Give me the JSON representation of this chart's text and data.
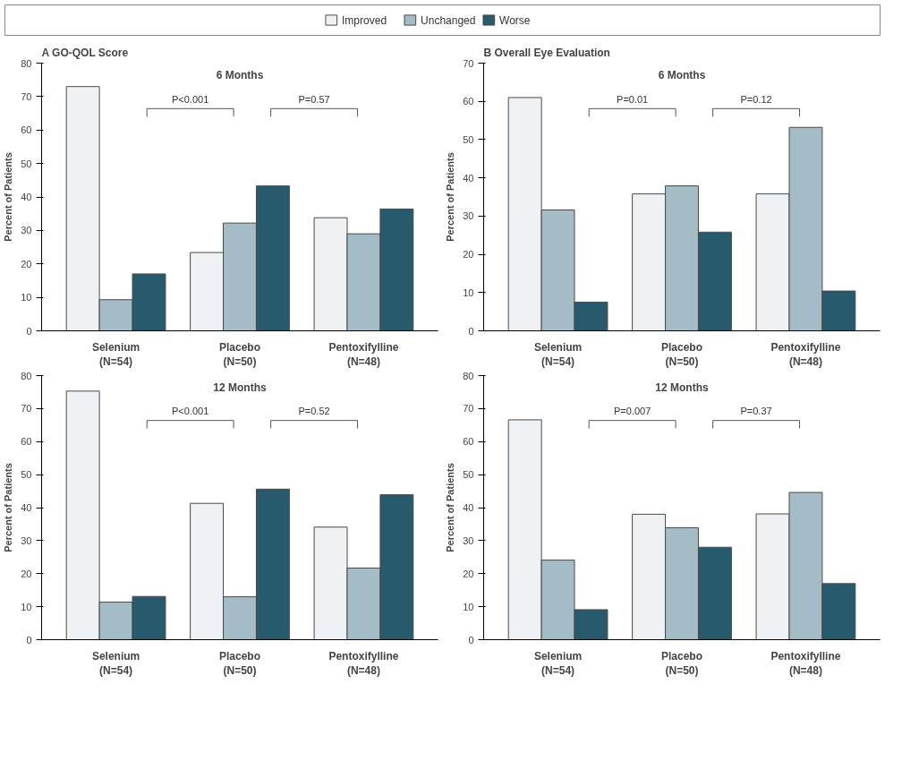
{
  "chart_data": [
    {
      "type": "bar",
      "title": "A GO-QOL Score",
      "subtitle": "6 Months",
      "ylabel": "Percent of Patients",
      "categories": [
        "Selenium\n(N=54)",
        "Placebo\n(N=50)",
        "Pentoxifylline\n(N=48)"
      ],
      "ylim": [
        0,
        80
      ],
      "yticks": [
        0,
        10,
        20,
        30,
        40,
        50,
        60,
        70,
        80
      ],
      "grid": false,
      "legend": "top",
      "series": [
        {
          "name": "Improved",
          "color": "#eef2f5",
          "values": [
            73,
            23.4,
            33.8
          ]
        },
        {
          "name": "Unchanged",
          "color": "#a3bcc6",
          "values": [
            9.3,
            32.2,
            29
          ]
        },
        {
          "name": "Worse",
          "color": "#265a6c",
          "values": [
            17,
            43.3,
            36.4
          ]
        }
      ],
      "annotations": [
        "P<0.001",
        "P=0.57"
      ]
    },
    {
      "type": "bar",
      "title": "B Overall Eye Evaluation",
      "subtitle": "6 Months",
      "ylabel": "Percent of Patients",
      "categories": [
        "Selenium\n(N=54)",
        "Placebo\n(N=50)",
        "Pentoxifylline\n(N=48)"
      ],
      "ylim": [
        0,
        70
      ],
      "yticks": [
        0,
        10,
        20,
        30,
        40,
        50,
        60,
        70
      ],
      "grid": false,
      "series": [
        {
          "color": "#eef2f5",
          "values": [
            61,
            35.8,
            35.8
          ]
        },
        {
          "color": "#a3bcc6",
          "values": [
            31.6,
            37.9,
            53.2
          ]
        },
        {
          "color": "#265a6c",
          "values": [
            7.5,
            25.8,
            10.4
          ]
        }
      ],
      "annotations": [
        "P=0.01",
        "P=0.12"
      ]
    },
    {
      "type": "bar",
      "subtitle": "12 Months",
      "ylabel": "Percent of Patients",
      "categories": [
        "Selenium\n(N=54)",
        "Placebo\n(N=50)",
        "Pentoxifylline\n(N=48)"
      ],
      "ylim": [
        0,
        80
      ],
      "yticks": [
        0,
        10,
        20,
        30,
        40,
        50,
        60,
        70,
        80
      ],
      "grid": false,
      "series": [
        {
          "color": "#eef2f5",
          "values": [
            75.3,
            41.3,
            34.1
          ]
        },
        {
          "color": "#a3bcc6",
          "values": [
            11.4,
            13,
            21.7
          ]
        },
        {
          "color": "#265a6c",
          "values": [
            13.1,
            45.6,
            43.9
          ]
        }
      ],
      "annotations": [
        "P<0.001",
        "P=0.52"
      ]
    },
    {
      "type": "bar",
      "subtitle": "12 Months",
      "ylabel": "Percent of Patients",
      "categories": [
        "Selenium\n(N=54)",
        "Placebo\n(N=50)",
        "Pentoxifylline\n(N=48)"
      ],
      "ylim": [
        0,
        80
      ],
      "yticks": [
        0,
        10,
        20,
        30,
        40,
        50,
        60,
        70,
        80
      ],
      "grid": false,
      "series": [
        {
          "color": "#eef2f5",
          "values": [
            66.6,
            38,
            38.1
          ]
        },
        {
          "color": "#a3bcc6",
          "values": [
            24.1,
            33.9,
            44.6
          ]
        },
        {
          "color": "#265a6c",
          "values": [
            9.1,
            28,
            17
          ]
        }
      ],
      "annotations": [
        "P=0.007",
        "P=0.37"
      ]
    }
  ]
}
